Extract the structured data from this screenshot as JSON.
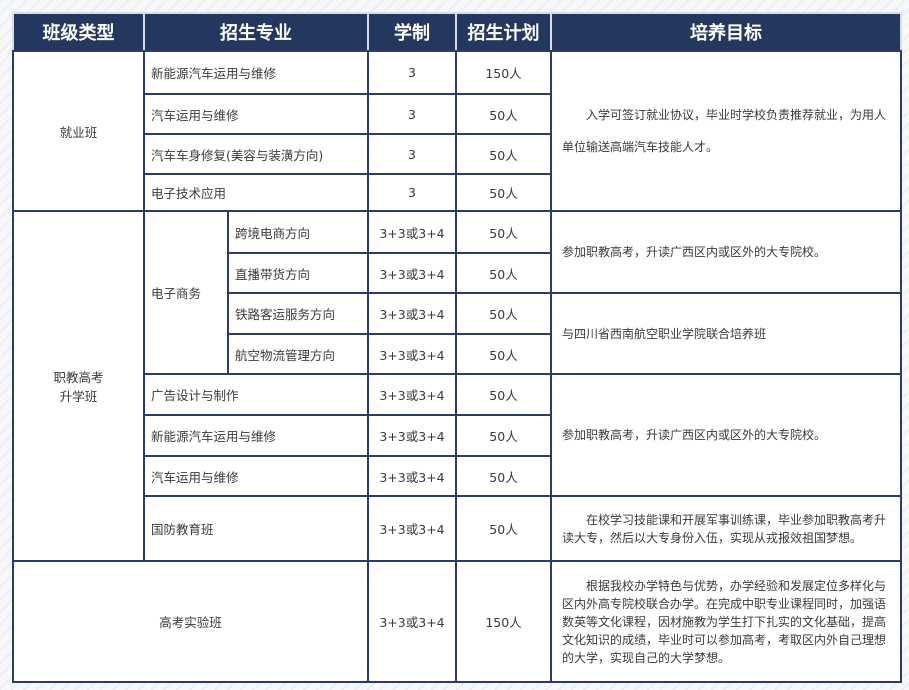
{
  "headers": [
    "班级类型",
    "招生专业",
    "学制",
    "招生计划",
    "培养目标"
  ],
  "jiuye": {
    "class": "就业班",
    "goal": "入学可签订就业协议，毕业时学校负责推荐就业，为用人单位输送高端汽车技能人才。",
    "rows": [
      {
        "major": "新能源汽车运用与维修",
        "years": "3",
        "plan": "150人"
      },
      {
        "major": "汽车运用与维修",
        "years": "3",
        "plan": "50人"
      },
      {
        "major": "汽车车身修复(美容与装潢方向)",
        "years": "3",
        "plan": "50人"
      },
      {
        "major": "电子技术应用",
        "years": "3",
        "plan": "50人"
      }
    ]
  },
  "zhijiao": {
    "class_line1": "职教高考",
    "class_line2": "升学班",
    "ecommerce": "电子商务",
    "rows": [
      {
        "major": "跨境电商方向",
        "years": "3+3或3+4",
        "plan": "50人"
      },
      {
        "major": "直播带货方向",
        "years": "3+3或3+4",
        "plan": "50人"
      },
      {
        "major": "铁路客运服务方向",
        "years": "3+3或3+4",
        "plan": "50人"
      },
      {
        "major": "航空物流管理方向",
        "years": "3+3或3+4",
        "plan": "50人"
      },
      {
        "major": "广告设计与制作",
        "years": "3+3或3+4",
        "plan": "50人"
      },
      {
        "major": "新能源汽车运用与维修",
        "years": "3+3或3+4",
        "plan": "50人"
      },
      {
        "major": "汽车运用与维修",
        "years": "3+3或3+4",
        "plan": "50人"
      },
      {
        "major": "国防教育班",
        "years": "3+3或3+4",
        "plan": "50人"
      }
    ],
    "goals": [
      "参加职教高考，升读广西区内或区外的大专院校。",
      "与四川省西南航空职业学院联合培养班",
      "参加职教高考，升读广西区内或区外的大专院校。",
      "在校学习技能课和开展军事训练课，毕业参加职教高考升读大专，然后以大专身份入伍，实现从戎报效祖国梦想。"
    ]
  },
  "gaokao": {
    "class": "高考实验班",
    "years": "3+3或3+4",
    "plan": "150人",
    "goal": "根据我校办学特色与优势，办学经验和发展定位多样化与区内外高专院校联合办学。在完成中职专业课程同时，加强语数英等文化课程，因材施教为学生打下扎实的文化基础，提高文化知识的成绩，毕业时可以参加高考，考取区内外自己理想的大学，实现自己的大学梦想。"
  }
}
